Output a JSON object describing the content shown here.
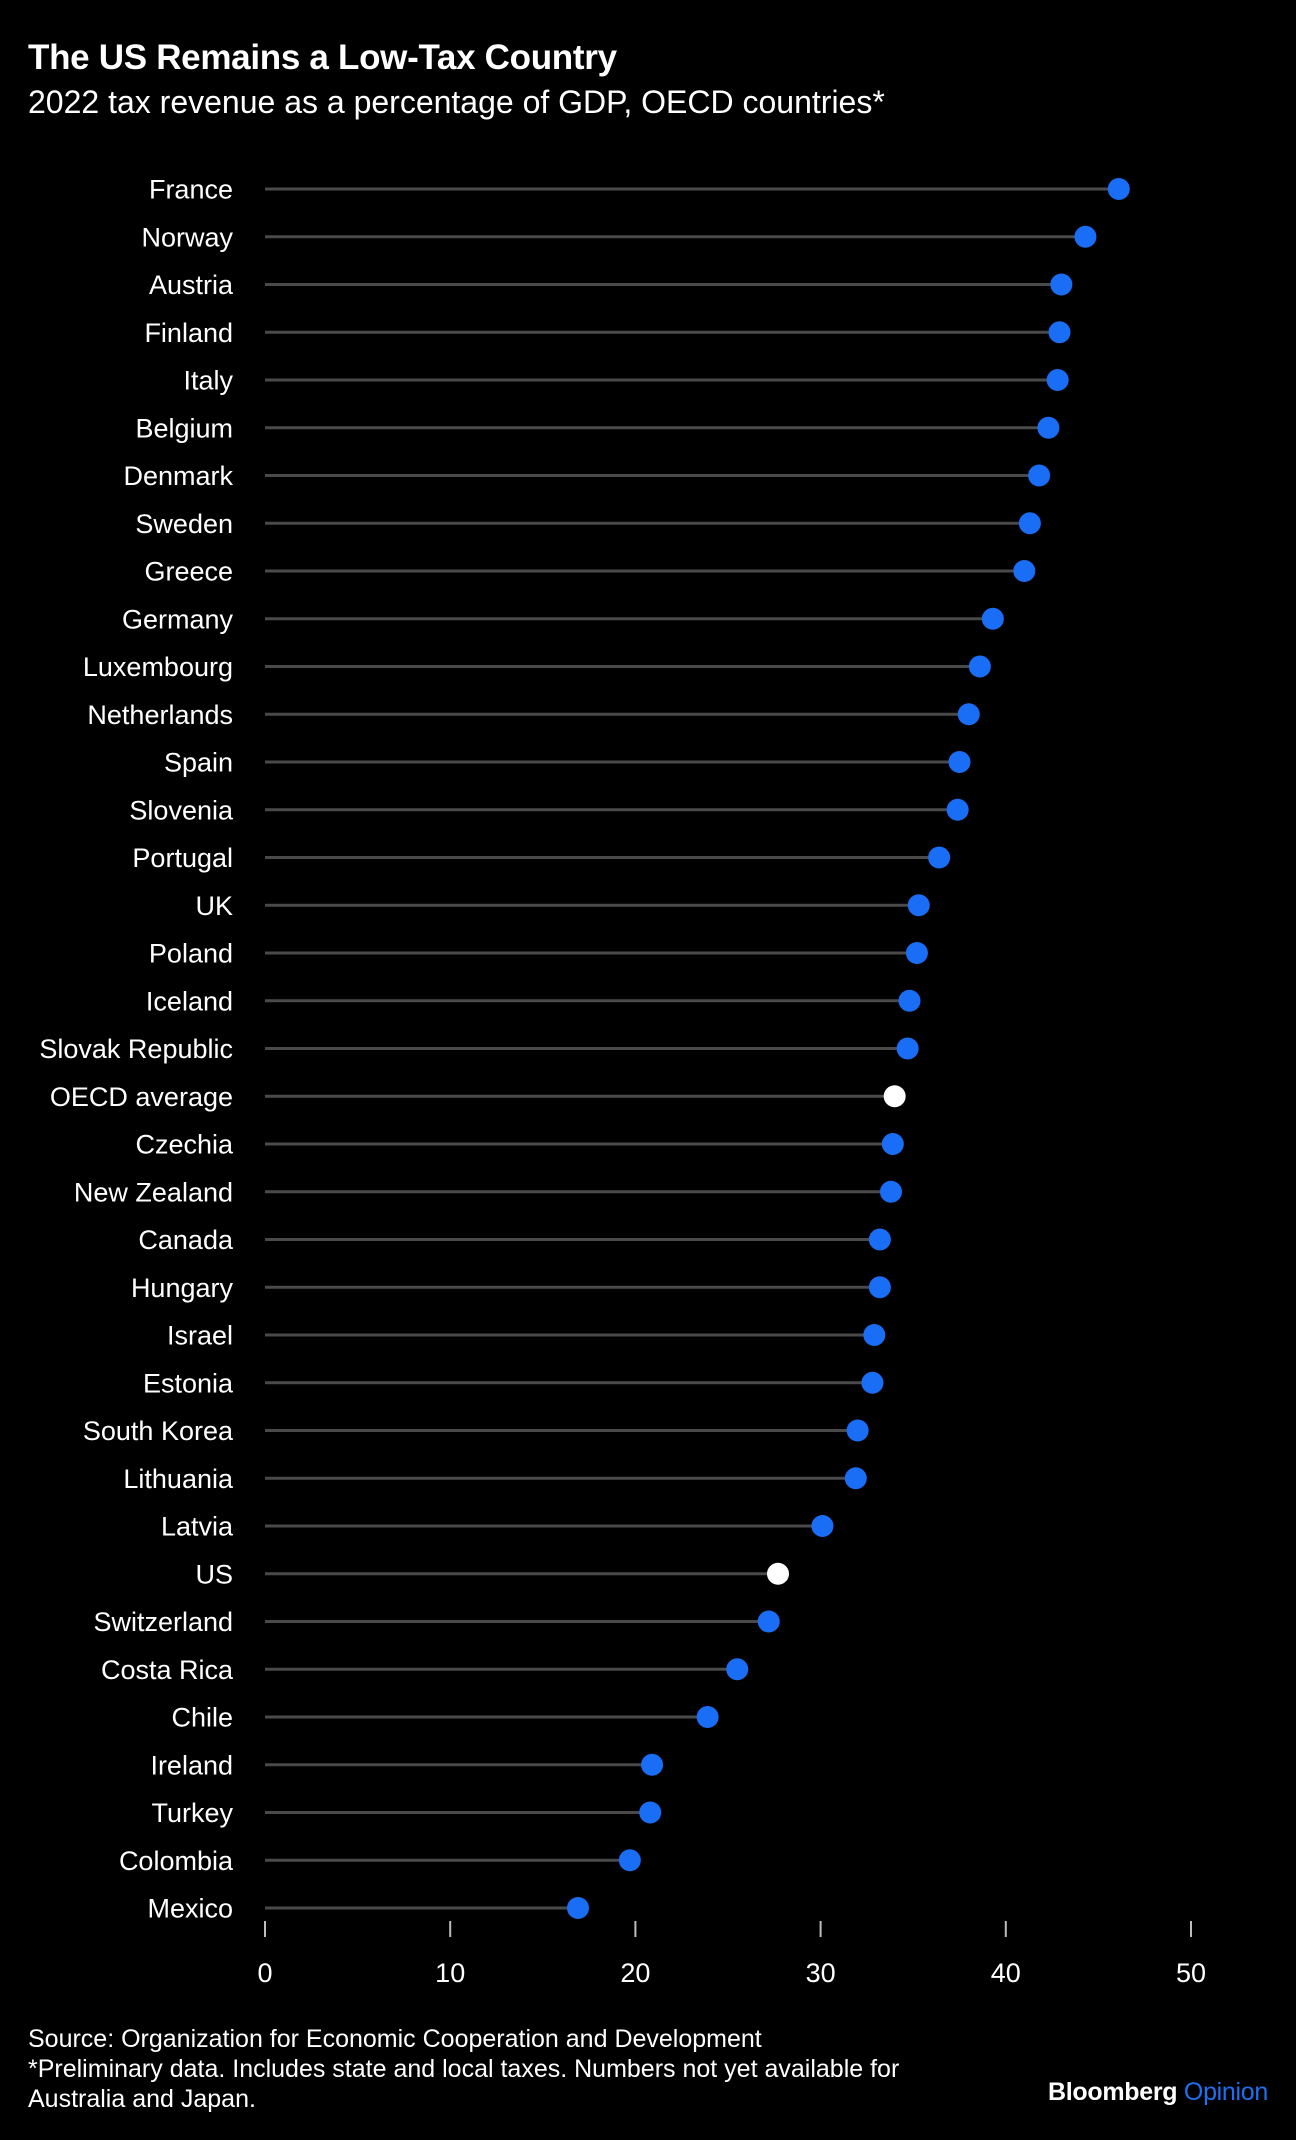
{
  "title": "The US Remains a Low-Tax Country",
  "subtitle": "2022 tax revenue as a percentage of GDP, OECD countries*",
  "colors": {
    "background": "#000000",
    "accent": "#1a6ef5",
    "highlight": "#ffffff",
    "stem": "#4a4a4a",
    "text": "#ffffff"
  },
  "chart_data": {
    "type": "lollipop",
    "orientation": "horizontal",
    "categories": [
      "France",
      "Norway",
      "Austria",
      "Finland",
      "Italy",
      "Belgium",
      "Denmark",
      "Sweden",
      "Greece",
      "Germany",
      "Luxembourg",
      "Netherlands",
      "Spain",
      "Slovenia",
      "Portugal",
      "UK",
      "Poland",
      "Iceland",
      "Slovak Republic",
      "OECD average",
      "Czechia",
      "New Zealand",
      "Canada",
      "Hungary",
      "Israel",
      "Estonia",
      "South Korea",
      "Lithuania",
      "Latvia",
      "US",
      "Switzerland",
      "Costa Rica",
      "Chile",
      "Ireland",
      "Turkey",
      "Colombia",
      "Mexico"
    ],
    "values": [
      46.1,
      44.3,
      43.0,
      42.9,
      42.8,
      42.3,
      41.8,
      41.3,
      41.0,
      39.3,
      38.6,
      38.0,
      37.5,
      37.4,
      36.4,
      35.3,
      35.2,
      34.8,
      34.7,
      34.0,
      33.9,
      33.8,
      33.2,
      33.2,
      32.9,
      32.8,
      32.0,
      31.9,
      30.1,
      27.7,
      27.2,
      25.5,
      23.9,
      20.9,
      20.8,
      19.7,
      16.9
    ],
    "highlighted": [
      "OECD average",
      "US"
    ],
    "xticks": [
      0,
      10,
      20,
      30,
      40,
      50
    ],
    "xlim": [
      0,
      50
    ],
    "xlabel": "",
    "ylabel": "",
    "grid": false,
    "legend": false
  },
  "footer": {
    "source": "Source: Organization for Economic Cooperation and Development",
    "note_line1": "*Preliminary data. Includes state and local taxes. Numbers not yet available for",
    "note_line2": "Australia and Japan."
  },
  "brand": {
    "name": "Bloomberg",
    "section": "Opinion"
  }
}
